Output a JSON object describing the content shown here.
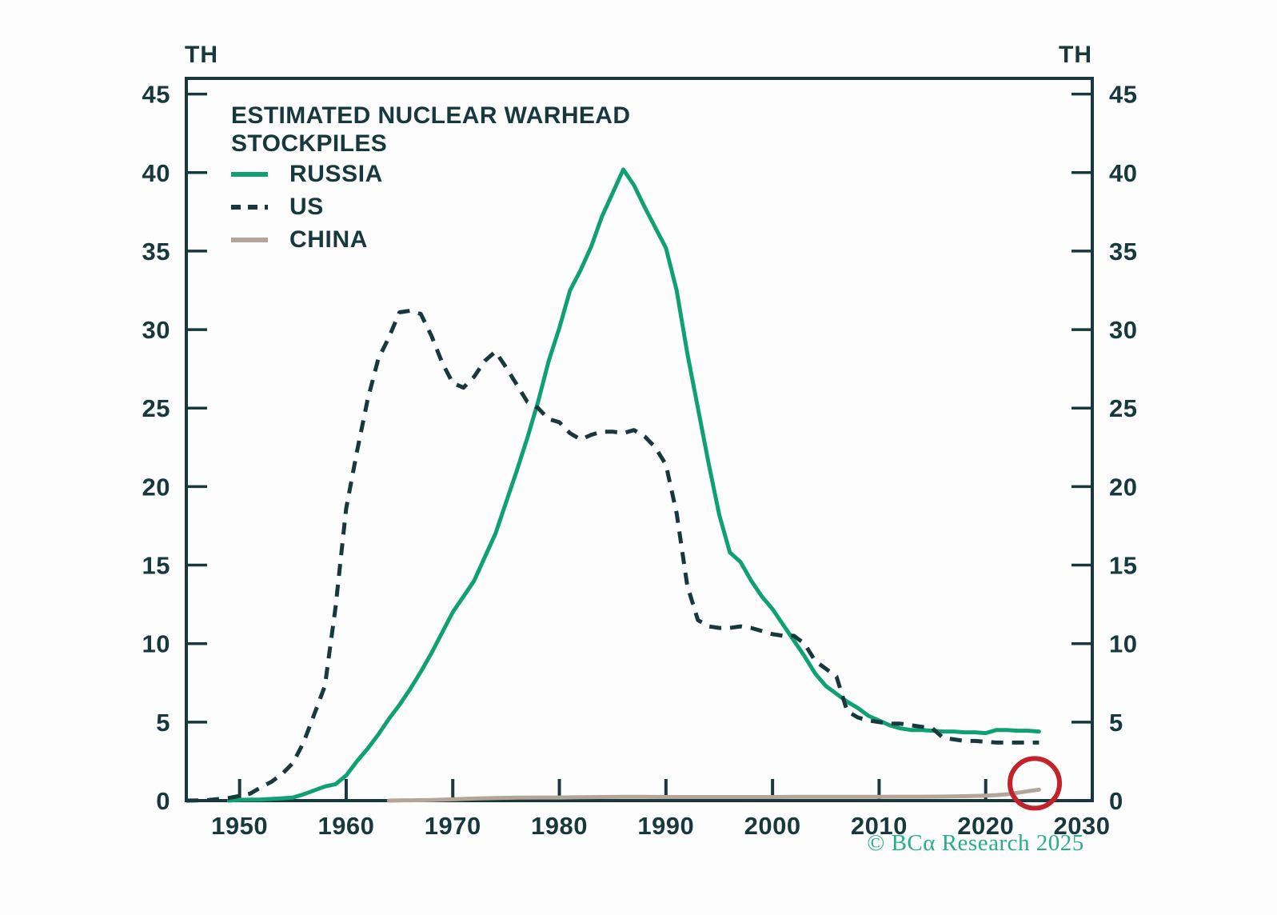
{
  "chart_data": {
    "type": "line",
    "title": "ESTIMATED NUCLEAR WARHEAD\nSTOCKPILES",
    "unit_label": "TH",
    "footer": "© BCα Research 2025",
    "footer_color": "#27ad8b",
    "axis_color": "#17393d",
    "background_color": "#fdfdfd",
    "xlim": [
      1945,
      2030
    ],
    "ylim": [
      0,
      46
    ],
    "x_ticks": [
      1950,
      1960,
      1970,
      1980,
      1990,
      2000,
      2010,
      2020,
      2030
    ],
    "y_ticks": [
      0,
      5,
      10,
      15,
      20,
      25,
      30,
      35,
      40,
      45
    ],
    "grid": false,
    "legend_position": "top-left",
    "series": [
      {
        "name": "RUSSIA",
        "color": "#0fa173",
        "dash": null,
        "points": [
          [
            1949,
            0.0
          ],
          [
            1950,
            0.05
          ],
          [
            1952,
            0.07
          ],
          [
            1954,
            0.15
          ],
          [
            1955,
            0.2
          ],
          [
            1956,
            0.4
          ],
          [
            1957,
            0.65
          ],
          [
            1958,
            0.9
          ],
          [
            1959,
            1.05
          ],
          [
            1960,
            1.6
          ],
          [
            1961,
            2.5
          ],
          [
            1962,
            3.3
          ],
          [
            1963,
            4.2
          ],
          [
            1964,
            5.2
          ],
          [
            1965,
            6.1
          ],
          [
            1966,
            7.1
          ],
          [
            1967,
            8.2
          ],
          [
            1968,
            9.4
          ],
          [
            1969,
            10.7
          ],
          [
            1970,
            12.0
          ],
          [
            1971,
            13.0
          ],
          [
            1972,
            14.0
          ],
          [
            1973,
            15.5
          ],
          [
            1974,
            17.0
          ],
          [
            1975,
            19.0
          ],
          [
            1976,
            21.0
          ],
          [
            1977,
            23.1
          ],
          [
            1978,
            25.4
          ],
          [
            1979,
            28.0
          ],
          [
            1980,
            30.1
          ],
          [
            1981,
            32.5
          ],
          [
            1982,
            33.8
          ],
          [
            1983,
            35.3
          ],
          [
            1984,
            37.2
          ],
          [
            1985,
            38.7
          ],
          [
            1986,
            40.2
          ],
          [
            1987,
            39.2
          ],
          [
            1988,
            37.8
          ],
          [
            1989,
            36.5
          ],
          [
            1990,
            35.2
          ],
          [
            1991,
            32.5
          ],
          [
            1992,
            28.5
          ],
          [
            1993,
            25.0
          ],
          [
            1994,
            21.5
          ],
          [
            1995,
            18.2
          ],
          [
            1996,
            15.8
          ],
          [
            1997,
            15.2
          ],
          [
            1998,
            14.0
          ],
          [
            1999,
            13.0
          ],
          [
            2000,
            12.2
          ],
          [
            2001,
            11.2
          ],
          [
            2002,
            10.2
          ],
          [
            2003,
            9.2
          ],
          [
            2004,
            8.1
          ],
          [
            2005,
            7.3
          ],
          [
            2006,
            6.8
          ],
          [
            2007,
            6.3
          ],
          [
            2008,
            5.9
          ],
          [
            2009,
            5.4
          ],
          [
            2010,
            5.1
          ],
          [
            2011,
            4.8
          ],
          [
            2012,
            4.6
          ],
          [
            2013,
            4.5
          ],
          [
            2014,
            4.5
          ],
          [
            2015,
            4.45
          ],
          [
            2016,
            4.4
          ],
          [
            2017,
            4.4
          ],
          [
            2018,
            4.35
          ],
          [
            2019,
            4.35
          ],
          [
            2020,
            4.3
          ],
          [
            2021,
            4.5
          ],
          [
            2022,
            4.5
          ],
          [
            2023,
            4.45
          ],
          [
            2024,
            4.45
          ],
          [
            2025,
            4.4
          ]
        ]
      },
      {
        "name": "US",
        "color": "#17393d",
        "dash": "15 11",
        "points": [
          [
            1945,
            0.0
          ],
          [
            1946,
            0.01
          ],
          [
            1947,
            0.03
          ],
          [
            1948,
            0.1
          ],
          [
            1949,
            0.17
          ],
          [
            1950,
            0.3
          ],
          [
            1951,
            0.45
          ],
          [
            1952,
            0.85
          ],
          [
            1953,
            1.2
          ],
          [
            1954,
            1.7
          ],
          [
            1955,
            2.4
          ],
          [
            1956,
            3.7
          ],
          [
            1957,
            5.5
          ],
          [
            1958,
            7.3
          ],
          [
            1959,
            12.3
          ],
          [
            1960,
            18.6
          ],
          [
            1961,
            22.2
          ],
          [
            1962,
            25.5
          ],
          [
            1963,
            28.1
          ],
          [
            1964,
            29.5
          ],
          [
            1965,
            31.1
          ],
          [
            1966,
            31.2
          ],
          [
            1967,
            31.0
          ],
          [
            1968,
            29.6
          ],
          [
            1969,
            27.9
          ],
          [
            1970,
            26.6
          ],
          [
            1971,
            26.3
          ],
          [
            1972,
            27.0
          ],
          [
            1973,
            28.0
          ],
          [
            1974,
            28.6
          ],
          [
            1975,
            27.6
          ],
          [
            1976,
            26.5
          ],
          [
            1977,
            25.4
          ],
          [
            1978,
            25.0
          ],
          [
            1979,
            24.3
          ],
          [
            1980,
            24.1
          ],
          [
            1981,
            23.4
          ],
          [
            1982,
            23.0
          ],
          [
            1983,
            23.3
          ],
          [
            1984,
            23.5
          ],
          [
            1985,
            23.5
          ],
          [
            1986,
            23.4
          ],
          [
            1987,
            23.6
          ],
          [
            1988,
            23.2
          ],
          [
            1989,
            22.5
          ],
          [
            1990,
            21.4
          ],
          [
            1991,
            18.3
          ],
          [
            1992,
            13.7
          ],
          [
            1993,
            11.5
          ],
          [
            1994,
            11.1
          ],
          [
            1995,
            11.0
          ],
          [
            1996,
            11.0
          ],
          [
            1997,
            11.1
          ],
          [
            1998,
            11.0
          ],
          [
            1999,
            10.8
          ],
          [
            2000,
            10.6
          ],
          [
            2001,
            10.5
          ],
          [
            2002,
            10.5
          ],
          [
            2003,
            10.0
          ],
          [
            2004,
            8.9
          ],
          [
            2005,
            8.4
          ],
          [
            2006,
            7.9
          ],
          [
            2007,
            5.7
          ],
          [
            2008,
            5.3
          ],
          [
            2009,
            5.1
          ],
          [
            2010,
            5.0
          ],
          [
            2011,
            4.9
          ],
          [
            2012,
            4.9
          ],
          [
            2013,
            4.8
          ],
          [
            2014,
            4.7
          ],
          [
            2015,
            4.6
          ],
          [
            2016,
            4.0
          ],
          [
            2017,
            3.9
          ],
          [
            2018,
            3.8
          ],
          [
            2019,
            3.8
          ],
          [
            2020,
            3.75
          ],
          [
            2021,
            3.7
          ],
          [
            2022,
            3.7
          ],
          [
            2023,
            3.7
          ],
          [
            2024,
            3.7
          ],
          [
            2025,
            3.7
          ]
        ]
      },
      {
        "name": "CHINA",
        "color": "#b3a697",
        "dash": null,
        "points": [
          [
            1964,
            0.0
          ],
          [
            1966,
            0.02
          ],
          [
            1968,
            0.04
          ],
          [
            1970,
            0.08
          ],
          [
            1972,
            0.13
          ],
          [
            1974,
            0.17
          ],
          [
            1976,
            0.19
          ],
          [
            1978,
            0.2
          ],
          [
            1980,
            0.2
          ],
          [
            1982,
            0.22
          ],
          [
            1984,
            0.23
          ],
          [
            1986,
            0.24
          ],
          [
            1988,
            0.24
          ],
          [
            1990,
            0.23
          ],
          [
            1992,
            0.23
          ],
          [
            1994,
            0.23
          ],
          [
            1996,
            0.23
          ],
          [
            1998,
            0.23
          ],
          [
            2000,
            0.23
          ],
          [
            2002,
            0.24
          ],
          [
            2004,
            0.24
          ],
          [
            2006,
            0.24
          ],
          [
            2008,
            0.24
          ],
          [
            2010,
            0.24
          ],
          [
            2012,
            0.25
          ],
          [
            2014,
            0.25
          ],
          [
            2016,
            0.26
          ],
          [
            2018,
            0.28
          ],
          [
            2020,
            0.32
          ],
          [
            2021,
            0.35
          ],
          [
            2022,
            0.41
          ],
          [
            2023,
            0.5
          ],
          [
            2024,
            0.6
          ],
          [
            2025,
            0.7
          ]
        ]
      }
    ],
    "annotation": {
      "type": "circle",
      "year": 2024.6,
      "value": 1.1,
      "radius_px": 31,
      "color": "#c2222a",
      "meaning": "highlights recent uptick in China stockpile"
    }
  }
}
